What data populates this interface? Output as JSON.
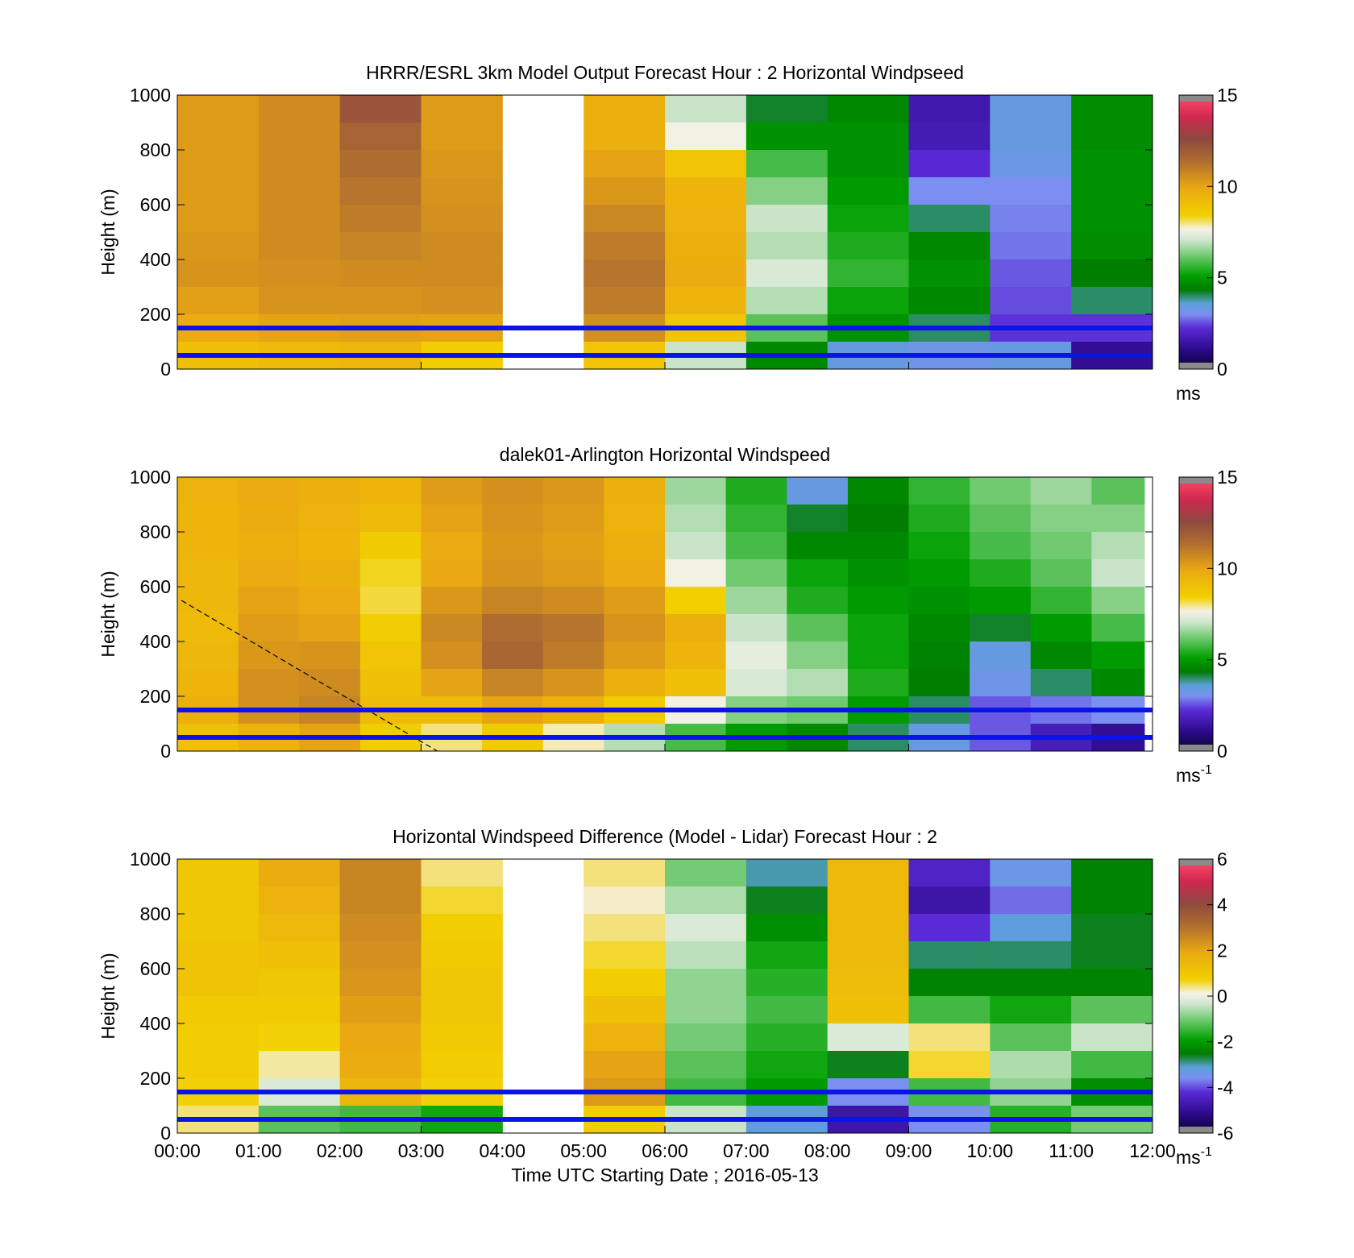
{
  "figure": {
    "xlabel": "Time UTC  Starting Date ; 2016-05-13",
    "x_tick_labels": [
      "00:00",
      "01:00",
      "02:00",
      "03:00",
      "04:00",
      "05:00",
      "06:00",
      "07:00",
      "08:00",
      "09:00",
      "10:00",
      "11:00",
      "12:00"
    ]
  },
  "chart_data": [
    {
      "type": "heatmap",
      "title": "HRRR/ESRL 3km Model Output   Forecast Hour : 2 Horizontal Windpseed",
      "ylabel": "Height (m)",
      "y_ticks": [
        0,
        200,
        400,
        600,
        800,
        1000
      ],
      "ylim": [
        0,
        1000
      ],
      "x_range_hours": [
        0,
        12
      ],
      "colorbar": {
        "range": [
          0,
          15
        ],
        "ticks": [
          0,
          5,
          10,
          15
        ],
        "unit": "ms",
        "unit_sup": ""
      },
      "reference_lines_height_m": [
        150,
        50
      ],
      "reference_line_color": "#0a14e8",
      "heights_m": [
        1000,
        900,
        800,
        700,
        600,
        500,
        400,
        300,
        200,
        100
      ],
      "columns": [
        {
          "t0": 0,
          "t1": 1,
          "values": [
            10.2,
            10.2,
            10.2,
            10.2,
            10.2,
            10.3,
            10.4,
            10.1,
            9.8,
            9.0
          ]
        },
        {
          "t0": 1,
          "t1": 2,
          "values": [
            10.6,
            10.6,
            10.6,
            10.6,
            10.6,
            10.6,
            10.5,
            10.4,
            10.0,
            9.2
          ]
        },
        {
          "t0": 2,
          "t1": 3,
          "values": [
            12.2,
            11.7,
            11.4,
            11.2,
            11.0,
            10.8,
            10.6,
            10.4,
            10.1,
            9.3
          ]
        },
        {
          "t0": 3,
          "t1": 4,
          "values": [
            10.2,
            10.2,
            10.3,
            10.4,
            10.5,
            10.6,
            10.6,
            10.5,
            10.0,
            8.5
          ]
        },
        {
          "t0": 4,
          "t1": 5,
          "values": [
            null,
            null,
            null,
            null,
            null,
            null,
            null,
            null,
            null,
            null
          ]
        },
        {
          "t0": 5,
          "t1": 6,
          "values": [
            9.6,
            9.6,
            10.0,
            10.3,
            10.7,
            11.0,
            11.2,
            11.0,
            10.5,
            8.8
          ]
        },
        {
          "t0": 6,
          "t1": 7,
          "values": [
            7.0,
            7.6,
            8.8,
            9.4,
            9.5,
            9.6,
            9.7,
            9.4,
            8.8,
            7.0
          ]
        },
        {
          "t0": 7,
          "t1": 8,
          "values": [
            4.2,
            4.8,
            5.8,
            6.4,
            7.0,
            6.8,
            7.2,
            6.8,
            6.0,
            4.6
          ]
        },
        {
          "t0": 8,
          "t1": 9,
          "values": [
            4.6,
            4.8,
            4.8,
            5.0,
            5.2,
            5.4,
            5.6,
            5.2,
            4.8,
            3.4
          ]
        },
        {
          "t0": 9,
          "t1": 10,
          "values": [
            1.6,
            1.7,
            2.2,
            3.0,
            4.0,
            4.6,
            4.8,
            4.6,
            4.0,
            3.2
          ]
        },
        {
          "t0": 10,
          "t1": 11,
          "values": [
            3.4,
            3.4,
            3.3,
            3.0,
            2.9,
            2.8,
            2.6,
            2.5,
            2.3,
            3.4
          ]
        },
        {
          "t0": 11,
          "t1": 12,
          "values": [
            4.7,
            4.7,
            4.8,
            4.8,
            4.8,
            4.7,
            4.4,
            4.0,
            2.3,
            1.2
          ]
        }
      ]
    },
    {
      "type": "heatmap",
      "title": "dalek01-Arlington  Horizontal Windspeed",
      "ylabel": "Height (m)",
      "y_ticks": [
        0,
        200,
        400,
        600,
        800,
        1000
      ],
      "ylim": [
        0,
        1000
      ],
      "x_range_hours": [
        0,
        12
      ],
      "colorbar": {
        "range": [
          0,
          15
        ],
        "ticks": [
          0,
          5,
          10,
          15
        ],
        "unit": "ms",
        "unit_sup": "-1"
      },
      "reference_lines_height_m": [
        150,
        50
      ],
      "reference_line_color": "#0a14e8",
      "dashed_line": {
        "from": {
          "t": 0.05,
          "height_m": 550
        },
        "to": {
          "t": 3.2,
          "height_m": 0
        }
      },
      "heights_m": [
        1000,
        900,
        800,
        700,
        600,
        500,
        400,
        300,
        200,
        100
      ],
      "columns": [
        {
          "t0": 0,
          "t1": 0.75,
          "values": [
            9.5,
            9.4,
            9.4,
            9.3,
            9.3,
            9.2,
            9.3,
            9.4,
            9.6,
            9.0
          ]
        },
        {
          "t0": 0.75,
          "t1": 1.5,
          "values": [
            9.8,
            9.7,
            9.6,
            9.8,
            10.0,
            10.2,
            10.3,
            10.5,
            10.5,
            9.5
          ]
        },
        {
          "t0": 1.5,
          "t1": 2.25,
          "values": [
            9.6,
            9.5,
            9.4,
            9.6,
            9.8,
            10.0,
            10.4,
            10.6,
            10.8,
            10.0
          ]
        },
        {
          "t0": 2.25,
          "t1": 3.0,
          "values": [
            9.4,
            9.2,
            8.6,
            8.3,
            8.2,
            8.5,
            8.8,
            9.0,
            9.2,
            8.5
          ]
        },
        {
          "t0": 3.0,
          "t1": 3.75,
          "values": [
            10.2,
            10.0,
            9.8,
            9.9,
            10.3,
            10.7,
            10.5,
            10.0,
            9.2,
            8.0
          ]
        },
        {
          "t0": 3.75,
          "t1": 4.5,
          "values": [
            10.5,
            10.4,
            10.3,
            10.4,
            10.8,
            11.4,
            11.6,
            10.8,
            10.0,
            8.6
          ]
        },
        {
          "t0": 4.5,
          "t1": 5.25,
          "values": [
            10.3,
            10.2,
            10.1,
            10.2,
            10.6,
            11.2,
            11.0,
            10.4,
            9.6,
            7.8
          ]
        },
        {
          "t0": 5.25,
          "t1": 6.0,
          "values": [
            9.6,
            9.5,
            9.6,
            9.8,
            10.2,
            10.4,
            10.2,
            9.6,
            8.6,
            6.8
          ]
        },
        {
          "t0": 6.0,
          "t1": 6.75,
          "values": [
            6.6,
            6.8,
            7.0,
            7.6,
            8.4,
            9.6,
            9.4,
            9.0,
            7.6,
            5.8
          ]
        },
        {
          "t0": 6.75,
          "t1": 7.5,
          "values": [
            5.4,
            5.6,
            5.8,
            6.2,
            6.6,
            7.0,
            7.4,
            7.2,
            6.4,
            5.0
          ]
        },
        {
          "t0": 7.5,
          "t1": 8.25,
          "values": [
            3.4,
            4.2,
            4.6,
            5.2,
            5.4,
            6.0,
            6.4,
            6.8,
            6.2,
            4.6
          ]
        },
        {
          "t0": 8.25,
          "t1": 9.0,
          "values": [
            4.6,
            4.4,
            4.6,
            4.8,
            5.0,
            5.2,
            5.2,
            5.4,
            5.0,
            4.0
          ]
        },
        {
          "t0": 9.0,
          "t1": 9.75,
          "values": [
            5.6,
            5.4,
            5.2,
            5.0,
            4.8,
            4.6,
            4.5,
            4.4,
            4.0,
            3.4
          ]
        },
        {
          "t0": 9.75,
          "t1": 10.5,
          "values": [
            6.2,
            6.0,
            5.8,
            5.4,
            5.0,
            4.2,
            3.4,
            3.2,
            2.6,
            2.6
          ]
        },
        {
          "t0": 10.5,
          "t1": 11.25,
          "values": [
            6.6,
            6.4,
            6.2,
            6.0,
            5.6,
            5.0,
            4.6,
            4.0,
            2.8,
            1.8
          ]
        },
        {
          "t0": 11.25,
          "t1": 11.9,
          "values": [
            6.0,
            6.4,
            6.8,
            7.0,
            6.4,
            5.8,
            5.0,
            4.6,
            3.0,
            1.2
          ]
        }
      ]
    },
    {
      "type": "heatmap",
      "title": "Horizontal Windspeed Difference (Model - Lidar) Forecast Hour : 2",
      "ylabel": "Height (m)",
      "y_ticks": [
        0,
        200,
        400,
        600,
        800,
        1000
      ],
      "ylim": [
        0,
        1000
      ],
      "x_range_hours": [
        0,
        12
      ],
      "colorbar": {
        "range": [
          -6,
          6
        ],
        "ticks": [
          -6,
          -4,
          -2,
          0,
          2,
          4,
          6
        ],
        "unit": "ms",
        "unit_sup": "-1"
      },
      "reference_lines_height_m": [
        150,
        50
      ],
      "reference_line_color": "#0a14e8",
      "heights_m": [
        1000,
        900,
        800,
        700,
        600,
        500,
        400,
        300,
        200,
        100
      ],
      "columns": [
        {
          "t0": 0,
          "t1": 1,
          "values": [
            1.0,
            1.0,
            1.0,
            1.1,
            1.1,
            0.9,
            0.8,
            0.8,
            0.7,
            0.4
          ]
        },
        {
          "t0": 1,
          "t1": 2,
          "values": [
            1.8,
            1.6,
            1.4,
            1.2,
            1.0,
            0.9,
            0.7,
            0.3,
            -0.2,
            -1.2
          ]
        },
        {
          "t0": 2,
          "t1": 3,
          "values": [
            2.6,
            2.6,
            2.5,
            2.4,
            2.3,
            2.1,
            1.9,
            1.8,
            1.5,
            -1.4
          ]
        },
        {
          "t0": 3,
          "t1": 4,
          "values": [
            0.4,
            0.6,
            0.8,
            0.9,
            1.0,
            1.0,
            0.9,
            0.8,
            0.7,
            -1.8
          ]
        },
        {
          "t0": 4,
          "t1": 5,
          "values": [
            null,
            null,
            null,
            null,
            null,
            null,
            null,
            null,
            null,
            null
          ]
        },
        {
          "t0": 5,
          "t1": 6,
          "values": [
            0.4,
            0.2,
            0.4,
            0.6,
            0.8,
            1.2,
            1.6,
            2.0,
            2.2,
            0.8
          ]
        },
        {
          "t0": 6,
          "t1": 7,
          "values": [
            -1.0,
            -0.6,
            -0.2,
            -0.5,
            -0.8,
            -0.8,
            -1.0,
            -1.2,
            -1.4,
            -0.4
          ]
        },
        {
          "t0": 7,
          "t1": 8,
          "values": [
            -3.0,
            -2.6,
            -2.2,
            -1.8,
            -1.6,
            -1.4,
            -1.6,
            -1.8,
            -2.0,
            -3.2
          ]
        },
        {
          "t0": 8,
          "t1": 9,
          "values": [
            1.4,
            1.4,
            1.4,
            1.4,
            1.3,
            1.2,
            -0.2,
            -2.6,
            -3.6,
            -4.8
          ]
        },
        {
          "t0": 9,
          "t1": 10,
          "values": [
            -4.4,
            -4.8,
            -4.2,
            -2.8,
            -2.4,
            -1.4,
            0.4,
            0.6,
            -1.4,
            -3.6
          ]
        },
        {
          "t0": 10,
          "t1": 11,
          "values": [
            -3.4,
            -3.8,
            -3.2,
            -2.8,
            -2.4,
            -1.8,
            -1.2,
            -0.6,
            -0.8,
            -1.6
          ]
        },
        {
          "t0": 11,
          "t1": 12,
          "values": [
            -2.4,
            -2.4,
            -2.6,
            -2.6,
            -2.4,
            -1.2,
            -0.4,
            -1.4,
            -2.2,
            -1.0
          ]
        }
      ]
    }
  ]
}
